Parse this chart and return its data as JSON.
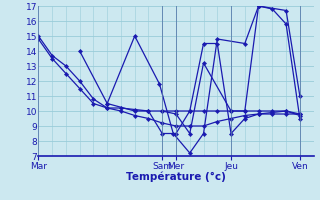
{
  "title": "",
  "xlabel": "Température (°c)",
  "ylabel": "",
  "ylim": [
    7,
    17
  ],
  "yticks": [
    7,
    8,
    9,
    10,
    11,
    12,
    13,
    14,
    15,
    16,
    17
  ],
  "background_color": "#cce8f0",
  "grid_color": "#99ccd9",
  "line_color": "#1a1ab0",
  "xlabel_color": "#1a1ab0",
  "tick_color": "#1a1ab0",
  "day_labels": [
    "Mar",
    "Sam",
    "Mer",
    "Jeu",
    "Ven"
  ],
  "day_x": [
    0,
    4.5,
    5.0,
    7.0,
    9.5
  ],
  "xlim": [
    0,
    10.0
  ],
  "series": [
    {
      "x": [
        0,
        0.5,
        1.0,
        1.5,
        2.0,
        2.5,
        3.0,
        3.5,
        4.0,
        4.5,
        5.0,
        5.5,
        6.0,
        6.5,
        7.0,
        7.5,
        8.0,
        8.5,
        9.0,
        9.5
      ],
      "y": [
        15,
        13.7,
        13.0,
        12.0,
        10.8,
        10.2,
        10.2,
        10.1,
        10.0,
        10.0,
        10.0,
        10.0,
        10.0,
        10.0,
        10.0,
        10.0,
        10.0,
        10.0,
        10.0,
        9.8
      ]
    },
    {
      "x": [
        0,
        0.5,
        1.0,
        1.5,
        2.0,
        2.5,
        3.0,
        3.5,
        4.0,
        4.5,
        5.0,
        5.5,
        6.0,
        6.5,
        7.0,
        7.5,
        8.0,
        8.5,
        9.0,
        9.5
      ],
      "y": [
        14.8,
        13.5,
        12.5,
        11.5,
        10.5,
        10.2,
        10.0,
        9.7,
        9.5,
        9.2,
        9.0,
        9.0,
        9.0,
        9.3,
        9.5,
        9.7,
        9.8,
        9.9,
        10.0,
        9.7
      ]
    },
    {
      "x": [
        1.5,
        2.5,
        3.5,
        4.4,
        4.9,
        5.5,
        6.0,
        6.5,
        7.5,
        8.0,
        9.0,
        9.5
      ],
      "y": [
        14.0,
        10.5,
        15.0,
        11.8,
        8.5,
        7.2,
        8.5,
        14.8,
        14.5,
        17.0,
        16.7,
        11.0
      ]
    },
    {
      "x": [
        2.5,
        3.5,
        4.0,
        4.5,
        5.0,
        5.5,
        6.0,
        6.5,
        7.0,
        7.5,
        8.0,
        8.5,
        9.0,
        9.5
      ],
      "y": [
        10.5,
        10.0,
        10.0,
        8.5,
        8.5,
        10.0,
        14.5,
        14.5,
        8.5,
        9.5,
        9.8,
        9.8,
        9.8,
        9.8
      ]
    },
    {
      "x": [
        4.5,
        5.0,
        5.5,
        6.0,
        7.0,
        7.5,
        8.0,
        8.5,
        9.0,
        9.5
      ],
      "y": [
        10.0,
        9.8,
        8.5,
        13.2,
        10.0,
        10.0,
        17.0,
        16.8,
        15.8,
        9.5
      ]
    }
  ]
}
